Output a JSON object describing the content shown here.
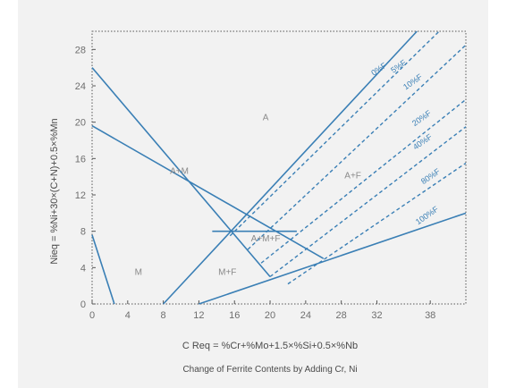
{
  "chart_data": {
    "type": "line",
    "title": "",
    "xlabel": "C Req = %Cr+%Mo+1.5×%Si+0.5×%Nb",
    "ylabel": "Nieq = %Ni+30×(C+N)+0.5×%Mn",
    "caption": "Change of Ferrite Contents by Adding Cr, Ni",
    "xlim": [
      0,
      42
    ],
    "ylim": [
      0,
      30
    ],
    "x_ticks": [
      "0",
      "4",
      "8",
      "12",
      "16",
      "20",
      "24",
      "28",
      "32",
      "38"
    ],
    "y_ticks": [
      "0",
      "4",
      "8",
      "12",
      "16",
      "20",
      "24",
      "28"
    ],
    "grid": false,
    "line_color": "#3a7fb5",
    "frame_style": "dotted",
    "solid_lines": [
      {
        "name": "",
        "x": [
          0,
          2.5
        ],
        "y": [
          7.6,
          0
        ]
      },
      {
        "name": "",
        "x": [
          0,
          20
        ],
        "y": [
          26,
          3
        ]
      },
      {
        "name": "",
        "x": [
          0,
          26
        ],
        "y": [
          19.6,
          5
        ]
      },
      {
        "name": "",
        "x": [
          13.5,
          23
        ],
        "y": [
          8,
          8
        ]
      },
      {
        "name": "",
        "x": [
          8,
          36.5
        ],
        "y": [
          0,
          30
        ]
      },
      {
        "name": "100%F",
        "x": [
          12,
          42
        ],
        "y": [
          0,
          10
        ]
      }
    ],
    "dashed_lines": [
      {
        "name": "5%F",
        "x": [
          15.5,
          39
        ],
        "y": [
          7.5,
          30
        ]
      },
      {
        "name": "10%F",
        "x": [
          17.5,
          42
        ],
        "y": [
          6,
          28.5
        ]
      },
      {
        "name": "20%F",
        "x": [
          19,
          42
        ],
        "y": [
          4.5,
          22.5
        ]
      },
      {
        "name": "40%F",
        "x": [
          20,
          42
        ],
        "y": [
          3,
          19.5
        ]
      },
      {
        "name": "80%F",
        "x": [
          22,
          42
        ],
        "y": [
          2.2,
          15.5
        ]
      }
    ],
    "curve_labels": [
      {
        "text": "0%F",
        "x": 32.4,
        "y": 25.6
      },
      {
        "text": "5%F",
        "x": 34.6,
        "y": 25.9
      },
      {
        "text": "10%F",
        "x": 36.2,
        "y": 24.2
      },
      {
        "text": "20%F",
        "x": 37.2,
        "y": 20.2
      },
      {
        "text": "40%F",
        "x": 37.3,
        "y": 17.6
      },
      {
        "text": "80%F",
        "x": 38.2,
        "y": 13.8
      },
      {
        "text": "100%F",
        "x": 37.8,
        "y": 9.5
      }
    ],
    "region_labels": [
      {
        "text": "A",
        "x": 19.5,
        "y": 20.2
      },
      {
        "text": "A+M",
        "x": 9.8,
        "y": 14.3
      },
      {
        "text": "A+F",
        "x": 29.3,
        "y": 13.8
      },
      {
        "text": "A+M+F",
        "x": 19.5,
        "y": 6.9
      },
      {
        "text": "M",
        "x": 5.2,
        "y": 3.2
      },
      {
        "text": "M+F",
        "x": 15.2,
        "y": 3.2
      }
    ]
  }
}
